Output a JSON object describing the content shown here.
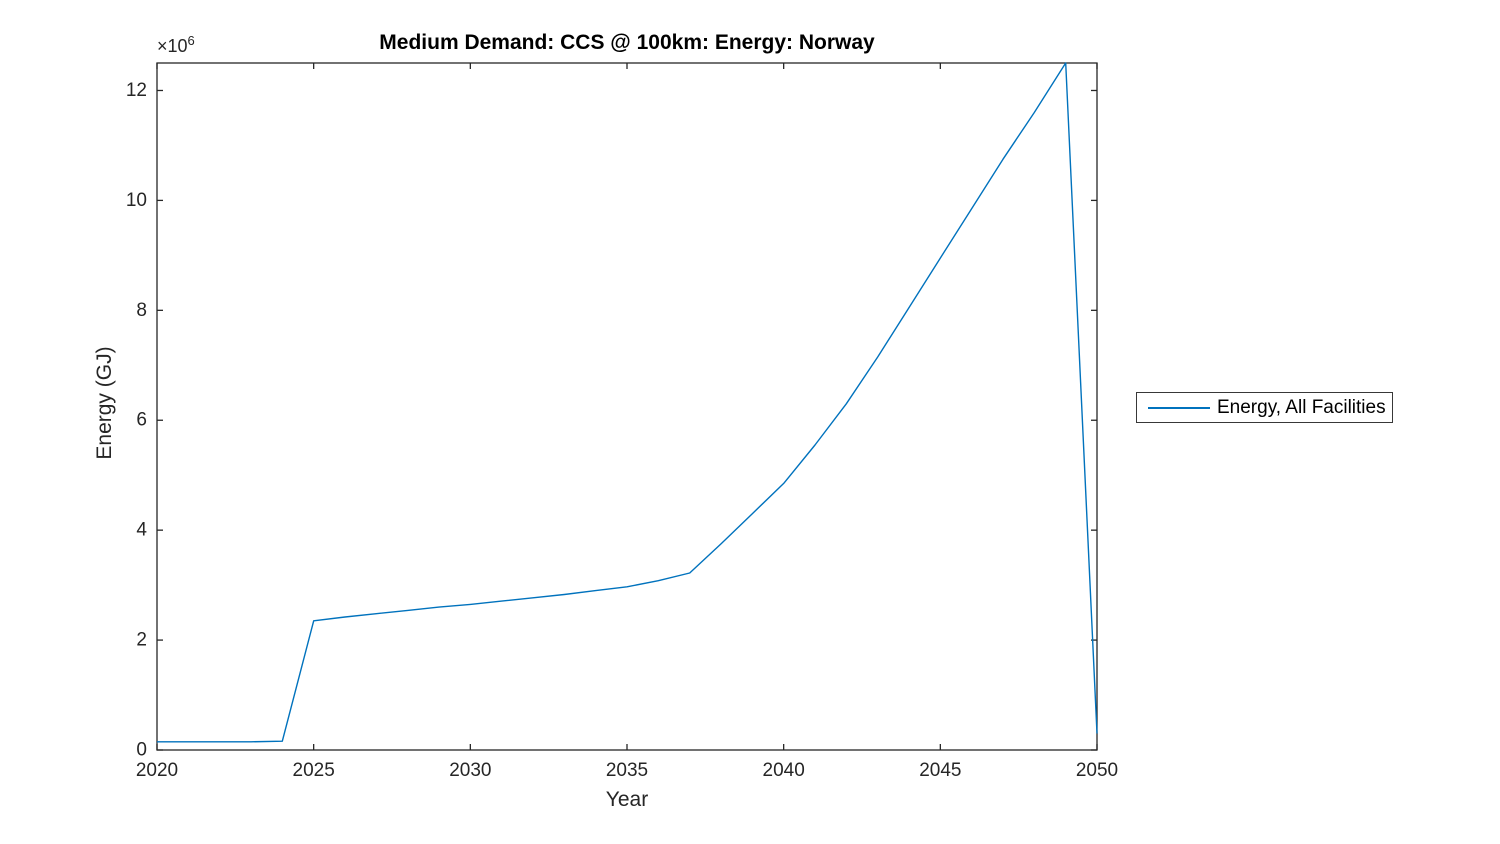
{
  "figure": {
    "background": "#ffffff"
  },
  "chart_data": {
    "type": "line",
    "title": "Medium Demand: CCS @ 100km: Energy: Norway",
    "xlabel": "Year",
    "ylabel": "Energy (GJ)",
    "y_exponent_label": "×10",
    "y_exponent_power": "6",
    "xlim": [
      2020,
      2050
    ],
    "ylim": [
      0,
      12500000
    ],
    "xticks": [
      2020,
      2025,
      2030,
      2035,
      2040,
      2045,
      2050
    ],
    "xtick_labels": [
      "2020",
      "2025",
      "2030",
      "2035",
      "2040",
      "2045",
      "2050"
    ],
    "yticks": [
      0,
      2000000,
      4000000,
      6000000,
      8000000,
      10000000,
      12000000
    ],
    "ytick_labels": [
      "0",
      "2",
      "4",
      "6",
      "8",
      "10",
      "12"
    ],
    "grid": false,
    "box": true,
    "tick_direction": "in",
    "axis_color": "#262626",
    "legend_position": "outside-right",
    "series": [
      {
        "name": "Energy, All Facilities",
        "color": "#0072BD",
        "x": [
          2020,
          2021,
          2022,
          2023,
          2024,
          2025,
          2026,
          2027,
          2028,
          2029,
          2030,
          2031,
          2032,
          2033,
          2034,
          2035,
          2036,
          2037,
          2038,
          2039,
          2040,
          2041,
          2042,
          2043,
          2044,
          2045,
          2046,
          2047,
          2048,
          2049,
          2050
        ],
        "y": [
          150000,
          150000,
          150000,
          150000,
          160000,
          2350000,
          2420000,
          2480000,
          2540000,
          2600000,
          2650000,
          2710000,
          2770000,
          2830000,
          2900000,
          2970000,
          3080000,
          3220000,
          3750000,
          4300000,
          4850000,
          5550000,
          6300000,
          7150000,
          8050000,
          8950000,
          9850000,
          10750000,
          11600000,
          12500000,
          300000
        ]
      }
    ]
  },
  "legend": {
    "entries": [
      {
        "label": "Energy, All Facilities",
        "color": "#0072BD"
      }
    ]
  }
}
